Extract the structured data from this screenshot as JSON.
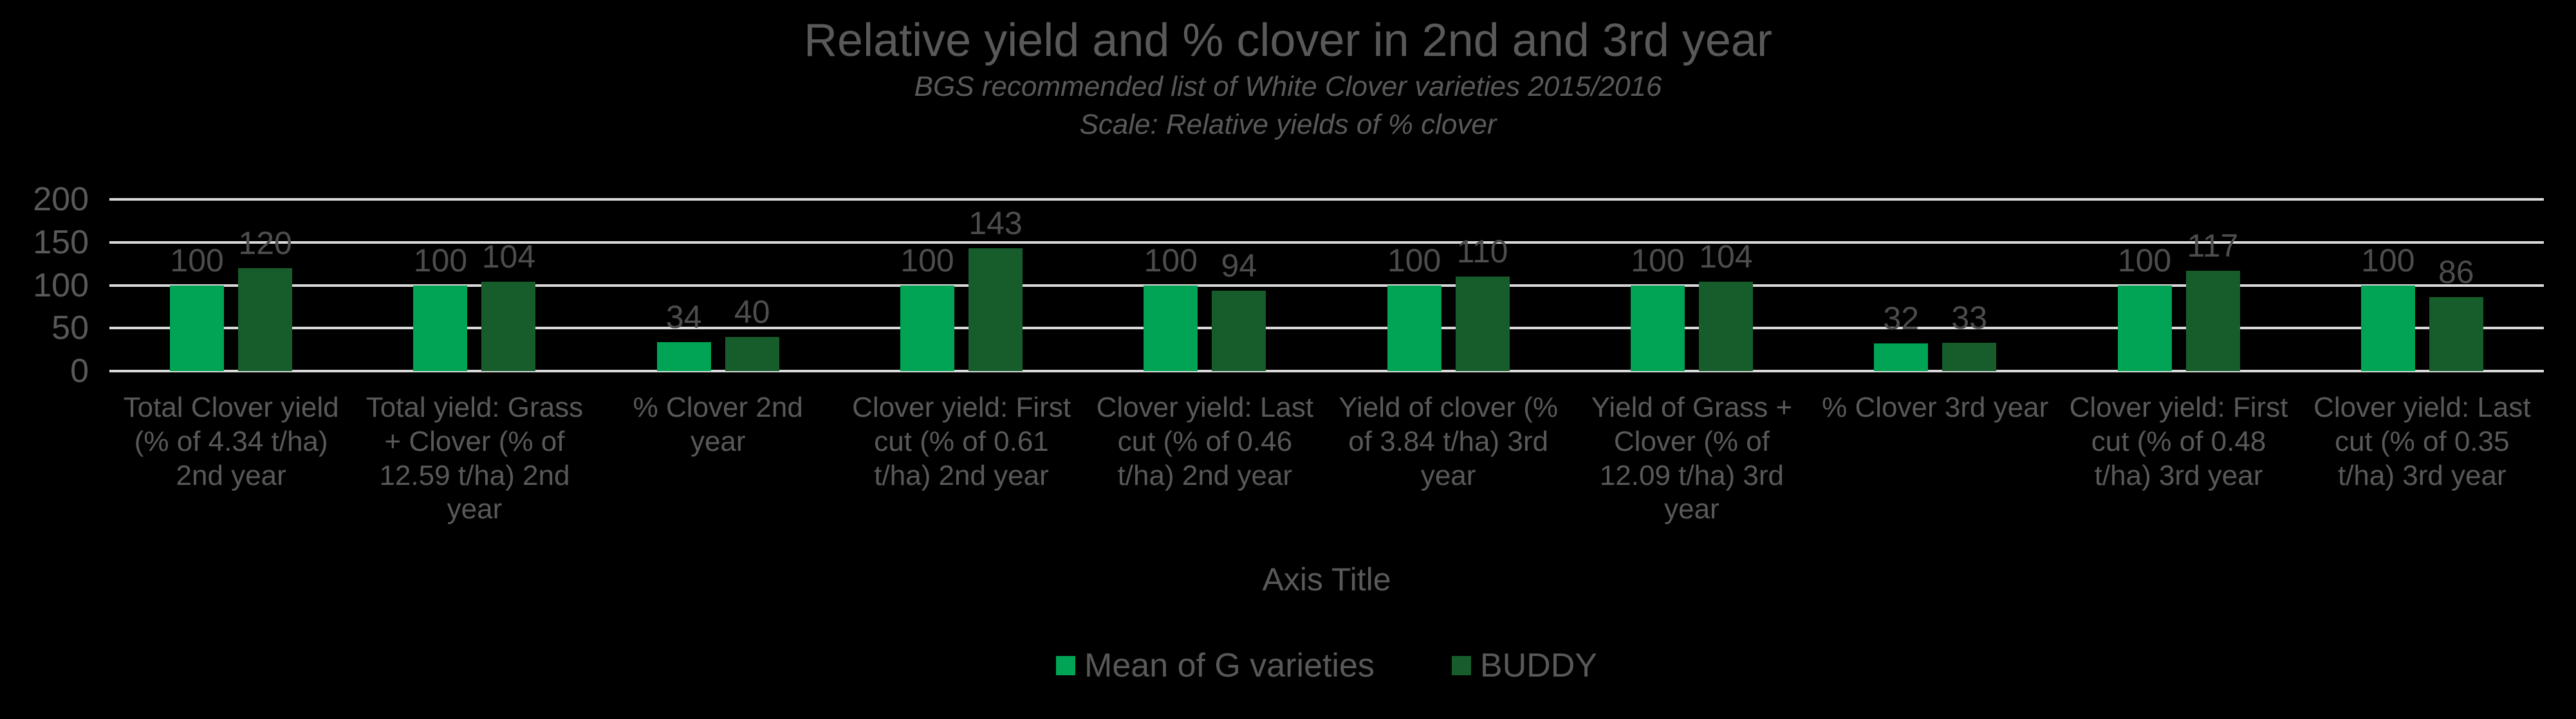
{
  "colors": {
    "background": "#000000",
    "text": "#595959",
    "data_label": "#4d4d4d",
    "gridline": "#d9d9d9",
    "series1": "#00a454",
    "series2": "#175d2c"
  },
  "chart_data": {
    "type": "bar",
    "title": "Relative yield and % clover in 2nd and 3rd year",
    "subtitle1": "BGS recommended list of White Clover varieties 2015/2016",
    "subtitle2": "Scale: Relative yields of % clover",
    "axis_title": "Axis Title",
    "ylim": [
      0,
      200
    ],
    "yticks": [
      0,
      50,
      100,
      150,
      200
    ],
    "grid": true,
    "legend_position": "bottom",
    "categories": [
      "Total Clover yield (% of 4.34 t/ha) 2nd year",
      "Total yield: Grass + Clover (% of 12.59 t/ha) 2nd year",
      "% Clover 2nd year",
      "Clover yield: First cut (% of 0.61 t/ha) 2nd year",
      "Clover yield: Last cut (% of 0.46 t/ha) 2nd year",
      "Yield of clover (% of 3.84 t/ha) 3rd year",
      "Yield of Grass + Clover (% of 12.09 t/ha) 3rd year",
      "% Clover 3rd year",
      "Clover yield: First cut (% of 0.48 t/ha) 3rd year",
      "Clover yield: Last cut (% of 0.35 t/ha) 3rd year"
    ],
    "series": [
      {
        "name": "Mean of G varieties",
        "color": "#00a454",
        "values": [
          100,
          100,
          34,
          100,
          100,
          100,
          100,
          32,
          100,
          100
        ]
      },
      {
        "name": "BUDDY",
        "color": "#175d2c",
        "values": [
          120,
          104,
          40,
          143,
          94,
          110,
          104,
          33,
          117,
          86
        ]
      }
    ]
  }
}
